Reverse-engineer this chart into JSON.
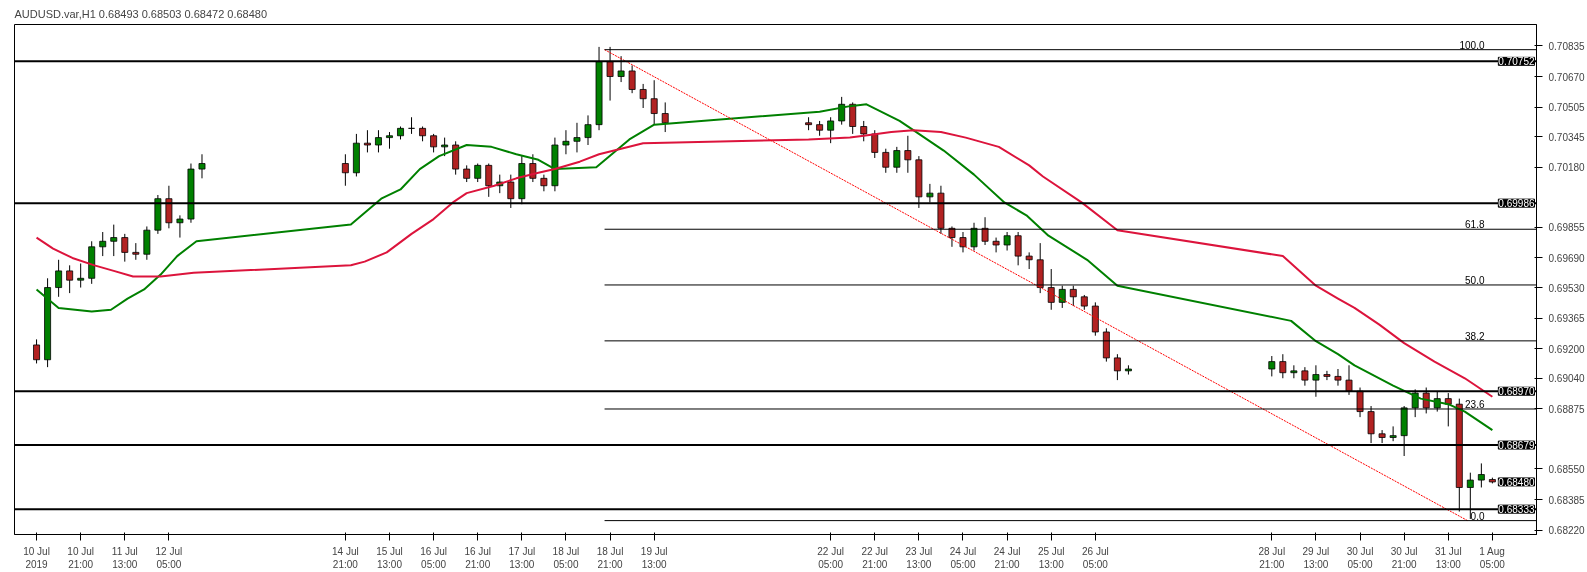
{
  "chart_data": {
    "type": "candlestick",
    "title": "AUDUSD.var,H1  0.68493 0.68503 0.68472 0.68480",
    "x": [
      "2019-07-10T05:00",
      "2019-07-10T09:00",
      "2019-07-10T13:00",
      "2019-07-10T17:00",
      "2019-07-10T21:00",
      "2019-07-11T01:00",
      "2019-07-11T05:00",
      "2019-07-11T09:00",
      "2019-07-11T13:00",
      "2019-07-11T17:00",
      "2019-07-11T21:00",
      "2019-07-12T01:00",
      "2019-07-12T05:00",
      "2019-07-12T09:00",
      "2019-07-12T13:00",
      "2019-07-12T17:00",
      "2019-07-14T21:00",
      "2019-07-15T01:00",
      "2019-07-15T05:00",
      "2019-07-15T09:00",
      "2019-07-15T13:00",
      "2019-07-15T17:00",
      "2019-07-15T21:00",
      "2019-07-16T01:00",
      "2019-07-16T05:00",
      "2019-07-16T09:00",
      "2019-07-16T13:00",
      "2019-07-16T17:00",
      "2019-07-16T21:00",
      "2019-07-17T01:00",
      "2019-07-17T05:00",
      "2019-07-17T09:00",
      "2019-07-17T13:00",
      "2019-07-17T17:00",
      "2019-07-17T21:00",
      "2019-07-18T01:00",
      "2019-07-18T05:00",
      "2019-07-18T09:00",
      "2019-07-18T13:00",
      "2019-07-18T17:00",
      "2019-07-18T21:00",
      "2019-07-19T01:00",
      "2019-07-19T05:00",
      "2019-07-19T09:00",
      "2019-07-19T13:00",
      "2019-07-19T17:00",
      "2019-07-21T21:00",
      "2019-07-22T01:00",
      "2019-07-22T05:00",
      "2019-07-22T09:00",
      "2019-07-22T13:00",
      "2019-07-22T17:00",
      "2019-07-22T21:00",
      "2019-07-23T01:00",
      "2019-07-23T05:00",
      "2019-07-23T09:00",
      "2019-07-23T13:00",
      "2019-07-23T17:00",
      "2019-07-23T21:00",
      "2019-07-24T01:00",
      "2019-07-24T05:00",
      "2019-07-24T09:00",
      "2019-07-24T13:00",
      "2019-07-24T17:00",
      "2019-07-24T21:00",
      "2019-07-25T01:00",
      "2019-07-25T05:00",
      "2019-07-25T09:00",
      "2019-07-25T13:00",
      "2019-07-25T17:00",
      "2019-07-25T21:00",
      "2019-07-26T01:00",
      "2019-07-26T05:00",
      "2019-07-26T09:00",
      "2019-07-26T13:00",
      "2019-07-26T17:00",
      "2019-07-28T21:00",
      "2019-07-29T01:00",
      "2019-07-29T05:00",
      "2019-07-29T09:00",
      "2019-07-29T13:00",
      "2019-07-29T17:00",
      "2019-07-29T21:00",
      "2019-07-30T01:00",
      "2019-07-30T05:00",
      "2019-07-30T09:00",
      "2019-07-30T13:00",
      "2019-07-30T17:00",
      "2019-07-30T21:00",
      "2019-07-31T01:00",
      "2019-07-31T05:00",
      "2019-07-31T09:00",
      "2019-07-31T13:00",
      "2019-07-31T17:00",
      "2019-07-31T21:00",
      "2019-08-01T01:00",
      "2019-08-01T05:00"
    ],
    "ohlc": [
      [
        0.6922,
        0.6925,
        0.6912,
        0.6914
      ],
      [
        0.6914,
        0.6958,
        0.691,
        0.6953
      ],
      [
        0.6953,
        0.6968,
        0.6948,
        0.6962
      ],
      [
        0.6962,
        0.6965,
        0.695,
        0.6957
      ],
      [
        0.6957,
        0.6966,
        0.6953,
        0.6958
      ],
      [
        0.6958,
        0.6978,
        0.6955,
        0.6975
      ],
      [
        0.6975,
        0.6983,
        0.697,
        0.6978
      ],
      [
        0.6978,
        0.6987,
        0.697,
        0.698
      ],
      [
        0.698,
        0.6982,
        0.6967,
        0.6972
      ],
      [
        0.6972,
        0.6977,
        0.6968,
        0.6971
      ],
      [
        0.6971,
        0.6986,
        0.6968,
        0.6984
      ],
      [
        0.6984,
        0.7003,
        0.6982,
        0.7001
      ],
      [
        0.7001,
        0.7008,
        0.6985,
        0.6988
      ],
      [
        0.6988,
        0.6992,
        0.698,
        0.699
      ],
      [
        0.699,
        0.702,
        0.6988,
        0.7017
      ],
      [
        0.7017,
        0.7025,
        0.7012,
        0.702
      ],
      [
        0.702,
        0.7025,
        0.7008,
        0.7015
      ],
      [
        0.7015,
        0.7036,
        0.7013,
        0.7031
      ],
      [
        0.7031,
        0.7038,
        0.7026,
        0.703
      ],
      [
        0.703,
        0.7038,
        0.7026,
        0.7034
      ],
      [
        0.7034,
        0.7037,
        0.7028,
        0.7035
      ],
      [
        0.7035,
        0.704,
        0.7033,
        0.7039
      ],
      [
        0.7039,
        0.7045,
        0.7036,
        0.7039
      ],
      [
        0.7039,
        0.704,
        0.7032,
        0.7035
      ],
      [
        0.7035,
        0.7036,
        0.7026,
        0.7029
      ],
      [
        0.7029,
        0.7034,
        0.7024,
        0.703
      ],
      [
        0.703,
        0.7032,
        0.7014,
        0.7017
      ],
      [
        0.7017,
        0.7019,
        0.701,
        0.7012
      ],
      [
        0.7012,
        0.702,
        0.701,
        0.7019
      ],
      [
        0.7019,
        0.702,
        0.7002,
        0.7008
      ],
      [
        0.7008,
        0.7014,
        0.7004,
        0.701
      ],
      [
        0.701,
        0.7014,
        0.6996,
        0.7001
      ],
      [
        0.7001,
        0.7024,
        0.6998,
        0.702
      ],
      [
        0.702,
        0.7025,
        0.701,
        0.7012
      ],
      [
        0.7012,
        0.7014,
        0.7005,
        0.7008
      ],
      [
        0.7008,
        0.7034,
        0.7005,
        0.703
      ],
      [
        0.703,
        0.7038,
        0.7025,
        0.7032
      ],
      [
        0.7032,
        0.7042,
        0.7026,
        0.7034
      ],
      [
        0.7034,
        0.7046,
        0.703,
        0.7041
      ],
      [
        0.7041,
        0.7083,
        0.7038,
        0.7075
      ],
      [
        0.7075,
        0.7083,
        0.7054,
        0.7067
      ],
      [
        0.7067,
        0.7078,
        0.7064,
        0.707
      ],
      [
        0.707,
        0.7073,
        0.7058,
        0.706
      ],
      [
        0.706,
        0.7063,
        0.705,
        0.7055
      ],
      [
        0.7055,
        0.7065,
        0.7041,
        0.7047
      ],
      [
        0.7047,
        0.7053,
        0.7037,
        0.7042
      ],
      [
        0.7042,
        0.7045,
        0.7038,
        0.7041
      ],
      [
        0.7041,
        0.7043,
        0.7035,
        0.7038
      ],
      [
        0.7038,
        0.7045,
        0.7031,
        0.7043
      ],
      [
        0.7043,
        0.7056,
        0.7041,
        0.7052
      ],
      [
        0.7052,
        0.7053,
        0.7036,
        0.704
      ],
      [
        0.704,
        0.7043,
        0.7032,
        0.7036
      ],
      [
        0.7036,
        0.7038,
        0.7023,
        0.7026
      ],
      [
        0.7026,
        0.7028,
        0.7015,
        0.7018
      ],
      [
        0.7018,
        0.7029,
        0.7015,
        0.7027
      ],
      [
        0.7027,
        0.7035,
        0.7015,
        0.7022
      ],
      [
        0.7022,
        0.7024,
        0.6996,
        0.7002
      ],
      [
        0.7002,
        0.7009,
        0.6999,
        0.7004
      ],
      [
        0.7004,
        0.7008,
        0.6982,
        0.6985
      ],
      [
        0.6985,
        0.6986,
        0.6975,
        0.698
      ],
      [
        0.698,
        0.6983,
        0.6972,
        0.6975
      ],
      [
        0.6975,
        0.6988,
        0.6973,
        0.6985
      ],
      [
        0.6985,
        0.6991,
        0.6976,
        0.6978
      ],
      [
        0.6978,
        0.698,
        0.6972,
        0.6976
      ],
      [
        0.6976,
        0.6983,
        0.6973,
        0.6981
      ],
      [
        0.6981,
        0.6983,
        0.6965,
        0.697
      ],
      [
        0.697,
        0.6972,
        0.6963,
        0.6968
      ],
      [
        0.6968,
        0.6977,
        0.695,
        0.6953
      ],
      [
        0.6953,
        0.6963,
        0.6941,
        0.6945
      ],
      [
        0.6945,
        0.6954,
        0.6942,
        0.6952
      ],
      [
        0.6952,
        0.6954,
        0.6943,
        0.6948
      ],
      [
        0.6948,
        0.6949,
        0.6941,
        0.6943
      ],
      [
        0.6943,
        0.6945,
        0.6927,
        0.6929
      ],
      [
        0.6929,
        0.6931,
        0.6913,
        0.6915
      ],
      [
        0.6915,
        0.6917,
        0.6903,
        0.6908
      ],
      [
        0.6908,
        0.6911,
        0.6906,
        0.6909
      ],
      [
        0.6909,
        0.6916,
        0.6905,
        0.6913
      ],
      [
        0.6913,
        0.6917,
        0.6904,
        0.6907
      ],
      [
        0.6907,
        0.6911,
        0.6904,
        0.6908
      ],
      [
        0.6908,
        0.691,
        0.69,
        0.6903
      ],
      [
        0.6903,
        0.6911,
        0.6894,
        0.6906
      ],
      [
        0.6906,
        0.6908,
        0.6903,
        0.6905
      ],
      [
        0.6905,
        0.6909,
        0.69,
        0.6903
      ],
      [
        0.6903,
        0.6911,
        0.6895,
        0.6897
      ],
      [
        0.6897,
        0.6899,
        0.6883,
        0.6886
      ],
      [
        0.6886,
        0.6889,
        0.6869,
        0.6874
      ],
      [
        0.6874,
        0.6876,
        0.6869,
        0.6872
      ],
      [
        0.6872,
        0.6878,
        0.687,
        0.6873
      ],
      [
        0.6873,
        0.6889,
        0.6862,
        0.6888
      ],
      [
        0.6888,
        0.6898,
        0.6883,
        0.6896
      ],
      [
        0.6896,
        0.6899,
        0.6885,
        0.6888
      ],
      [
        0.6888,
        0.6897,
        0.6886,
        0.6893
      ],
      [
        0.6893,
        0.6896,
        0.6878,
        0.689
      ],
      [
        0.689,
        0.6893,
        0.6832,
        0.6845
      ],
      [
        0.6845,
        0.6853,
        0.6828,
        0.6849
      ],
      [
        0.6849,
        0.6858,
        0.6845,
        0.6852
      ],
      [
        0.68493,
        0.68503,
        0.68472,
        0.6848
      ]
    ],
    "series": [
      {
        "type": "line",
        "color": "#008000",
        "x": [
          "2019-07-10T05:00",
          "2019-07-10T13:00",
          "2019-07-11T01:00",
          "2019-07-11T08:00",
          "2019-07-11T14:00",
          "2019-07-11T20:00",
          "2019-07-12T02:00",
          "2019-07-12T08:00",
          "2019-07-12T15:00",
          "2019-07-14T23:00",
          "2019-07-15T10:00",
          "2019-07-15T17:00",
          "2019-07-16T00:00",
          "2019-07-16T07:00",
          "2019-07-16T17:00",
          "2019-07-17T02:00",
          "2019-07-17T11:00",
          "2019-07-17T19:00",
          "2019-07-18T01:00",
          "2019-07-18T16:00",
          "2019-07-19T04:00",
          "2019-07-19T13:00",
          "2019-07-22T01:00",
          "2019-07-22T12:00",
          "2019-07-22T18:00",
          "2019-07-23T06:00",
          "2019-07-23T11:00",
          "2019-07-23T22:00",
          "2019-07-24T09:00",
          "2019-07-24T20:00",
          "2019-07-25T04:00",
          "2019-07-25T12:00",
          "2019-07-26T02:00",
          "2019-07-26T13:00",
          "2019-07-29T04:00",
          "2019-07-29T13:00",
          "2019-07-29T21:00",
          "2019-07-30T03:00",
          "2019-07-30T17:00",
          "2019-07-31T03:00",
          "2019-07-31T13:00",
          "2019-07-31T19:00",
          "2019-08-01T05:00"
        ],
        "values": [
          0.6952,
          0.6942,
          0.694,
          0.6941,
          0.6947,
          0.6952,
          0.696,
          0.697,
          0.6978,
          0.6987,
          0.7001,
          0.7006,
          0.7017,
          0.7024,
          0.703,
          0.7029,
          0.7025,
          0.7022,
          0.7017,
          0.7018,
          0.7033,
          0.7041,
          0.7048,
          0.7051,
          0.7052,
          0.7043,
          0.7038,
          0.7027,
          0.7014,
          0.6999,
          0.6992,
          0.6981,
          0.6968,
          0.6954,
          0.6935,
          0.6924,
          0.6917,
          0.6911,
          0.69,
          0.6893,
          0.689,
          0.6886,
          0.6876
        ]
      },
      {
        "type": "line",
        "color": "#dc143c",
        "x": [
          "2019-07-10T05:00",
          "2019-07-10T11:00",
          "2019-07-10T18:00",
          "2019-07-11T02:00",
          "2019-07-11T09:00",
          "2019-07-11T16:00",
          "2019-07-12T02:00",
          "2019-07-12T14:00",
          "2019-07-14T23:00",
          "2019-07-15T04:00",
          "2019-07-15T12:00",
          "2019-07-15T21:00",
          "2019-07-16T05:00",
          "2019-07-16T12:00",
          "2019-07-16T17:00",
          "2019-07-17T03:00",
          "2019-07-17T11:00",
          "2019-07-17T19:00",
          "2019-07-18T01:00",
          "2019-07-18T10:00",
          "2019-07-18T17:00",
          "2019-07-19T01:00",
          "2019-07-19T09:00",
          "2019-07-21T21:00",
          "2019-07-22T12:00",
          "2019-07-22T17:00",
          "2019-07-23T03:00",
          "2019-07-23T11:00",
          "2019-07-23T21:00",
          "2019-07-24T06:00",
          "2019-07-24T18:00",
          "2019-07-25T05:00",
          "2019-07-25T10:00",
          "2019-07-26T00:00",
          "2019-07-26T13:00",
          "2019-07-29T01:00",
          "2019-07-29T13:00",
          "2019-07-29T21:00",
          "2019-07-30T03:00",
          "2019-07-30T12:00",
          "2019-07-30T21:00",
          "2019-07-31T08:00",
          "2019-07-31T19:00",
          "2019-08-01T05:00"
        ],
        "values": [
          0.698,
          0.6974,
          0.6969,
          0.6965,
          0.6962,
          0.6959,
          0.6959,
          0.6961,
          0.6965,
          0.6967,
          0.6972,
          0.6982,
          0.699,
          0.6999,
          0.7004,
          0.7008,
          0.7012,
          0.7015,
          0.7017,
          0.7021,
          0.7025,
          0.7028,
          0.7031,
          0.7033,
          0.7034,
          0.7035,
          0.7037,
          0.7038,
          0.7037,
          0.7034,
          0.7029,
          0.7019,
          0.7013,
          0.6999,
          0.6984,
          0.697,
          0.6954,
          0.6947,
          0.6942,
          0.6933,
          0.6923,
          0.6913,
          0.6904,
          0.6894
        ]
      },
      {
        "type": "line",
        "color": "#ff0000",
        "line_style": "dashed",
        "x": [
          "2019-07-18T19:00",
          "2019-07-31T20:00"
        ],
        "values": [
          0.70815,
          0.68271
        ]
      },
      {
        "type": "line",
        "name": "100.0",
        "color": "#000000",
        "x": [
          "2019-07-18T19:00",
          "2019-08-01T21:00"
        ],
        "values": [
          0.70815,
          0.70815
        ]
      },
      {
        "type": "line",
        "name": "61.8",
        "color": "#000000",
        "x": [
          "2019-07-18T19:00",
          "2019-08-01T21:00"
        ],
        "values": [
          0.69845,
          0.69845
        ]
      },
      {
        "type": "line",
        "name": "50.0",
        "color": "#000000",
        "x": [
          "2019-07-18T19:00",
          "2019-08-01T21:00"
        ],
        "values": [
          0.69544,
          0.69544
        ]
      },
      {
        "type": "line",
        "name": "38.2",
        "color": "#000000",
        "x": [
          "2019-07-18T19:00",
          "2019-08-01T21:00"
        ],
        "values": [
          0.69242,
          0.69242
        ]
      },
      {
        "type": "line",
        "name": "23.6",
        "color": "#000000",
        "x": [
          "2019-07-18T19:00",
          "2019-08-01T21:00"
        ],
        "values": [
          0.68874,
          0.68874
        ]
      },
      {
        "type": "line",
        "name": "0.0",
        "color": "#000000",
        "x": [
          "2019-07-18T19:00",
          "2019-08-01T21:00"
        ],
        "values": [
          0.68271,
          0.68271
        ]
      }
    ],
    "ref_lines": [
      {
        "axis": "y",
        "value": 0.70752,
        "label": "0.70752"
      },
      {
        "axis": "y",
        "value": 0.69986,
        "label": "0.69986"
      },
      {
        "axis": "y",
        "value": 0.6897,
        "label": "0.68970"
      },
      {
        "axis": "y",
        "value": 0.68679,
        "label": "0.68679"
      },
      {
        "axis": "y",
        "value": 0.68333,
        "label": "0.68333"
      }
    ],
    "annotations": [
      "0.68480"
    ],
    "xlim": [
      "2019-07-09T21:00",
      "2019-08-01T21:00"
    ],
    "xticks": [
      {
        "value": "2019-07-10T05:00",
        "label": "10 Jul 2019"
      },
      {
        "value": "2019-07-10T21:00",
        "label": "10 Jul 21:00"
      },
      {
        "value": "2019-07-11T13:00",
        "label": "11 Jul 13:00"
      },
      {
        "value": "2019-07-12T05:00",
        "label": "12 Jul 05:00"
      },
      {
        "value": "2019-07-14T21:00",
        "label": "14 Jul 21:00"
      },
      {
        "value": "2019-07-15T13:00",
        "label": "15 Jul 13:00"
      },
      {
        "value": "2019-07-16T05:00",
        "label": "16 Jul 05:00"
      },
      {
        "value": "2019-07-16T21:00",
        "label": "16 Jul 21:00"
      },
      {
        "value": "2019-07-17T13:00",
        "label": "17 Jul 13:00"
      },
      {
        "value": "2019-07-18T05:00",
        "label": "18 Jul 05:00"
      },
      {
        "value": "2019-07-18T21:00",
        "label": "18 Jul 21:00"
      },
      {
        "value": "2019-07-19T13:00",
        "label": "19 Jul 13:00"
      },
      {
        "value": "2019-07-22T05:00",
        "label": "22 Jul 05:00"
      },
      {
        "value": "2019-07-22T21:00",
        "label": "22 Jul 21:00"
      },
      {
        "value": "2019-07-23T13:00",
        "label": "23 Jul 13:00"
      },
      {
        "value": "2019-07-24T05:00",
        "label": "24 Jul 05:00"
      },
      {
        "value": "2019-07-24T21:00",
        "label": "24 Jul 21:00"
      },
      {
        "value": "2019-07-25T13:00",
        "label": "25 Jul 13:00"
      },
      {
        "value": "2019-07-26T05:00",
        "label": "26 Jul 05:00"
      },
      {
        "value": "2019-07-28T21:00",
        "label": "28 Jul 21:00"
      },
      {
        "value": "2019-07-29T13:00",
        "label": "29 Jul 13:00"
      },
      {
        "value": "2019-07-30T05:00",
        "label": "30 Jul 05:00"
      },
      {
        "value": "2019-07-30T21:00",
        "label": "30 Jul 21:00"
      },
      {
        "value": "2019-07-31T13:00",
        "label": "31 Jul 13:00"
      },
      {
        "value": "2019-08-01T05:00",
        "label": "1 Aug 05:00"
      }
    ],
    "ylim": [
      0.68196,
      0.70951
    ],
    "yticks": [
      {
        "value": 0.70835,
        "label": "0.70835"
      },
      {
        "value": 0.7067,
        "label": "0.70670"
      },
      {
        "value": 0.70505,
        "label": "0.70505"
      },
      {
        "value": 0.70345,
        "label": "0.70345"
      },
      {
        "value": 0.7018,
        "label": "0.70180"
      },
      {
        "value": 0.69855,
        "label": "0.69855"
      },
      {
        "value": 0.6969,
        "label": "0.69690"
      },
      {
        "value": 0.6953,
        "label": "0.69530"
      },
      {
        "value": 0.69365,
        "label": "0.69365"
      },
      {
        "value": 0.692,
        "label": "0.69200"
      },
      {
        "value": 0.6904,
        "label": "0.69040"
      },
      {
        "value": 0.68875,
        "label": "0.68875"
      },
      {
        "value": 0.6855,
        "label": "0.68550"
      },
      {
        "value": 0.68385,
        "label": "0.68385"
      },
      {
        "value": 0.6822,
        "label": "0.68220"
      }
    ],
    "grid": false
  }
}
